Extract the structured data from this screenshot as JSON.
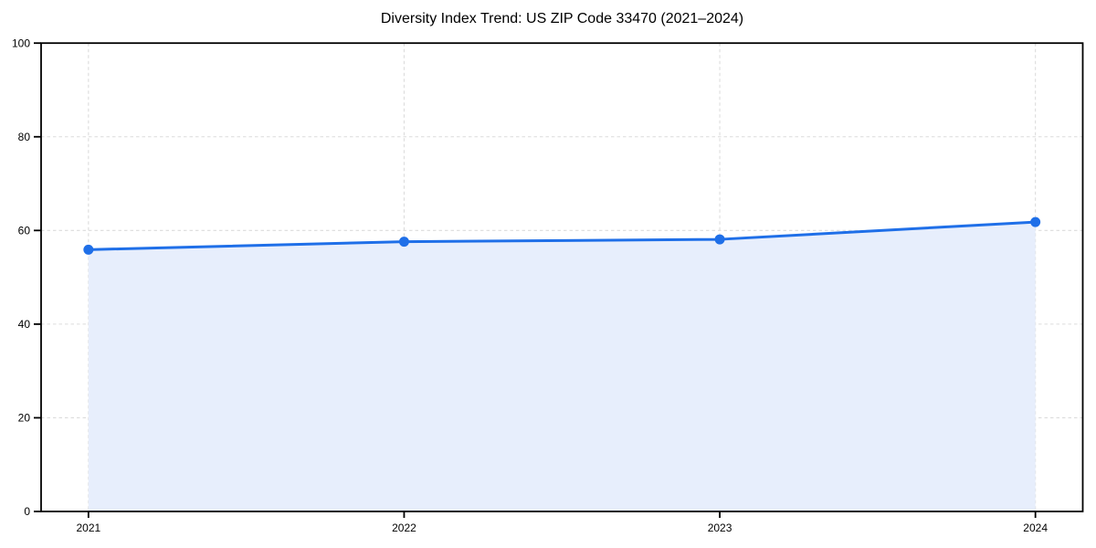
{
  "chart_data": {
    "type": "area",
    "title": "Diversity Index Trend: US ZIP Code 33470 (2021–2024)",
    "x": [
      2021,
      2022,
      2023,
      2024
    ],
    "values": [
      55.9,
      57.6,
      58.1,
      61.8
    ],
    "xlabel": "",
    "ylabel": "",
    "ylim": [
      0,
      100
    ],
    "yticks": [
      0,
      20,
      40,
      60,
      80,
      100
    ],
    "xticks": [
      2021,
      2022,
      2023,
      2024
    ],
    "grid": true,
    "grid_style": "dashed",
    "legend": false,
    "colors": {
      "line": "#1f6fe8",
      "marker": "#1f6fe8",
      "area_fill": "#e7eefc",
      "grid": "#dcdcdc",
      "spine": "#000000",
      "text": "#000000",
      "background": "#ffffff"
    }
  }
}
